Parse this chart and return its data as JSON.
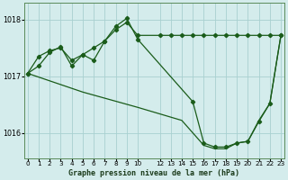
{
  "title": "Graphe pression niveau de la mer (hPa)",
  "bg_color": "#d4ecec",
  "grid_color": "#a8d0d0",
  "line_color": "#1a5c1a",
  "ylim": [
    1015.55,
    1018.3
  ],
  "yticks": [
    1016,
    1017,
    1018
  ],
  "xlim": [
    -0.3,
    23.3
  ],
  "xticks": [
    0,
    1,
    2,
    3,
    4,
    5,
    6,
    7,
    8,
    9,
    10,
    12,
    13,
    14,
    15,
    16,
    17,
    18,
    19,
    20,
    21,
    22,
    23
  ],
  "series1_x": [
    0,
    1,
    2,
    3,
    4,
    5,
    6,
    7,
    8,
    9,
    10,
    12,
    13,
    14,
    15,
    16,
    17,
    18,
    19,
    20,
    21,
    22,
    23
  ],
  "series1_y": [
    1017.05,
    1017.35,
    1017.45,
    1017.5,
    1017.28,
    1017.38,
    1017.5,
    1017.62,
    1017.82,
    1017.95,
    1017.72,
    1017.72,
    1017.72,
    1017.72,
    1017.72,
    1017.72,
    1017.72,
    1017.72,
    1017.72,
    1017.72,
    1017.72,
    1017.72,
    1017.72
  ],
  "series2_x": [
    0,
    1,
    2,
    3,
    4,
    5,
    6,
    7,
    8,
    9,
    10,
    15,
    16,
    17,
    18,
    19,
    20,
    21,
    22,
    23
  ],
  "series2_y": [
    1017.05,
    1017.18,
    1017.42,
    1017.52,
    1017.18,
    1017.38,
    1017.28,
    1017.62,
    1017.88,
    1018.02,
    1017.65,
    1016.55,
    1015.82,
    1015.75,
    1015.75,
    1015.82,
    1015.85,
    1016.2,
    1016.52,
    1017.72
  ],
  "series3_x": [
    0,
    5,
    10,
    14,
    15,
    16,
    17,
    18,
    19,
    20,
    21,
    22,
    23
  ],
  "series3_y": [
    1017.05,
    1016.72,
    1016.45,
    1016.22,
    1016.0,
    1015.78,
    1015.72,
    1015.72,
    1015.82,
    1015.85,
    1016.22,
    1016.52,
    1017.72
  ]
}
